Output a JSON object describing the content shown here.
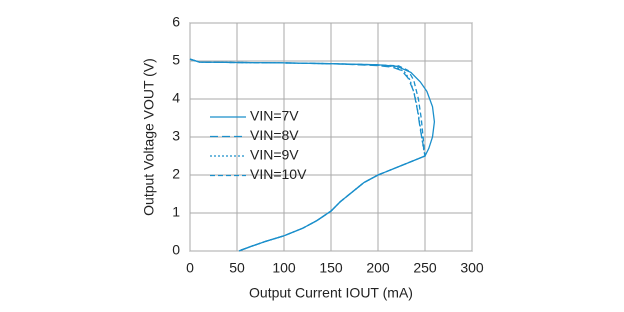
{
  "chart_data": {
    "type": "line",
    "x_label": "Output Current IOUT (mA)",
    "y_label": "Output Voltage VOUT (V)",
    "xlim": [
      0,
      300
    ],
    "xticks": [
      0,
      50,
      100,
      150,
      200,
      250,
      300
    ],
    "ylim": [
      0,
      6
    ],
    "yticks": [
      0,
      1,
      2,
      3,
      4,
      5,
      6
    ],
    "grid": true,
    "legend": "left",
    "series": [
      {
        "name": "VIN=7V",
        "color": "#1b8fcb",
        "x": [
          0,
          10,
          50,
          100,
          150,
          200,
          220,
          235,
          245,
          252,
          258,
          260,
          258,
          254,
          250,
          240,
          230,
          215,
          200,
          185,
          170,
          160,
          150,
          135,
          120,
          100,
          80,
          65,
          55,
          52
        ],
        "values": [
          5.05,
          4.97,
          4.96,
          4.95,
          4.93,
          4.9,
          4.86,
          4.7,
          4.45,
          4.2,
          3.8,
          3.4,
          3.0,
          2.7,
          2.5,
          2.4,
          2.3,
          2.15,
          2.0,
          1.8,
          1.5,
          1.3,
          1.05,
          0.8,
          0.6,
          0.4,
          0.25,
          0.12,
          0.03,
          0
        ]
      },
      {
        "name": "VIN=8V",
        "color": "#1b8fcb",
        "dash": "8 4",
        "x": [
          0,
          10,
          50,
          100,
          150,
          200,
          215,
          225,
          232,
          238,
          242,
          245,
          248,
          250,
          240,
          230,
          215,
          200,
          185,
          170,
          160,
          150,
          135,
          120,
          100,
          80,
          65,
          55,
          52
        ],
        "values": [
          5.05,
          4.97,
          4.96,
          4.95,
          4.93,
          4.88,
          4.84,
          4.75,
          4.55,
          4.2,
          3.7,
          3.2,
          2.8,
          2.5,
          2.4,
          2.3,
          2.15,
          2.0,
          1.8,
          1.5,
          1.3,
          1.05,
          0.8,
          0.6,
          0.4,
          0.25,
          0.12,
          0.03,
          0
        ]
      },
      {
        "name": "VIN=9V",
        "color": "#1b8fcb",
        "dash": "2 2",
        "x": [
          0,
          10,
          50,
          100,
          150,
          200,
          218,
          228,
          234,
          239,
          243,
          246,
          248,
          250,
          240,
          230,
          215,
          200,
          185,
          170,
          160,
          150,
          135,
          120,
          100,
          80,
          65,
          55,
          52
        ],
        "values": [
          5.05,
          4.97,
          4.96,
          4.95,
          4.93,
          4.89,
          4.85,
          4.72,
          4.5,
          4.1,
          3.6,
          3.1,
          2.75,
          2.5,
          2.4,
          2.3,
          2.15,
          2.0,
          1.8,
          1.5,
          1.3,
          1.05,
          0.8,
          0.6,
          0.4,
          0.25,
          0.12,
          0.03,
          0
        ]
      },
      {
        "name": "VIN=10V",
        "color": "#1b8fcb",
        "dash": "5 3",
        "x": [
          0,
          10,
          50,
          100,
          150,
          200,
          222,
          232,
          238,
          243,
          246,
          248,
          249,
          250,
          240,
          230,
          215,
          200,
          185,
          170,
          160,
          150,
          135,
          120,
          100,
          80,
          65,
          55,
          52
        ],
        "values": [
          5.05,
          4.97,
          4.96,
          4.95,
          4.93,
          4.9,
          4.87,
          4.75,
          4.5,
          4.0,
          3.5,
          3.0,
          2.7,
          2.5,
          2.4,
          2.3,
          2.15,
          2.0,
          1.8,
          1.5,
          1.3,
          1.05,
          0.8,
          0.6,
          0.4,
          0.25,
          0.12,
          0.03,
          0
        ]
      }
    ]
  }
}
